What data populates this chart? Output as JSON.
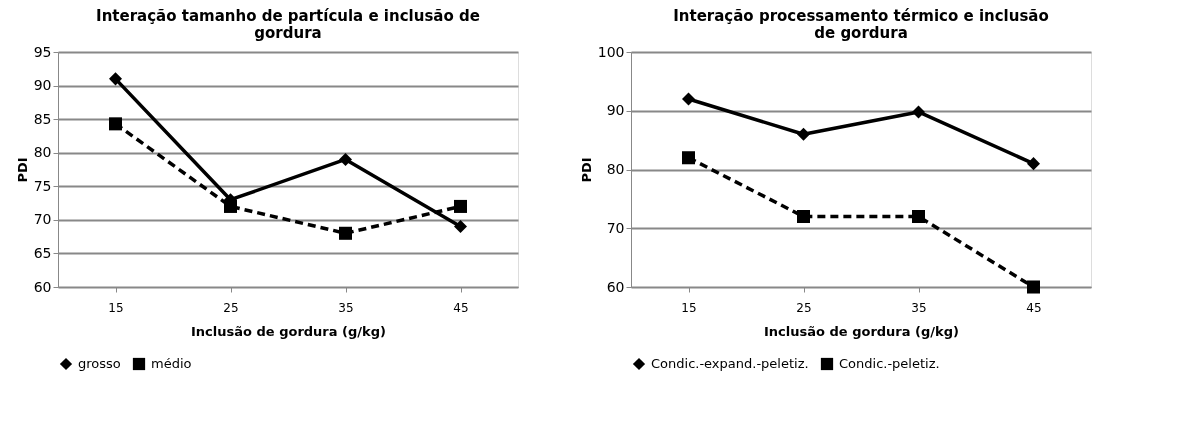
{
  "chart_data": [
    {
      "type": "line",
      "title": "Interação tamanho de partícula e inclusão de gordura",
      "xlabel": "Inclusão de gordura (g/kg)",
      "ylabel": "PDI",
      "categories": [
        "15",
        "25",
        "35",
        "45"
      ],
      "ylim": [
        60,
        95
      ],
      "yticks": [
        60,
        65,
        70,
        75,
        80,
        85,
        90,
        95
      ],
      "grid": "y",
      "legend": "bottom",
      "series": [
        {
          "name": "grosso",
          "color": "#000000",
          "values": [
            91,
            73,
            79,
            69
          ],
          "marker": "diamond",
          "line_style": "solid"
        },
        {
          "name": "médio",
          "color": "#000000",
          "values": [
            84.3,
            72,
            68,
            72
          ],
          "marker": "square",
          "line_style": "dashed"
        }
      ]
    },
    {
      "type": "line",
      "title": "Interação processamento térmico e inclusão de gordura",
      "xlabel": "Inclusão de gordura (g/kg)",
      "ylabel": "PDI",
      "categories": [
        "15",
        "25",
        "35",
        "45"
      ],
      "ylim": [
        60,
        100
      ],
      "yticks": [
        60,
        70,
        80,
        90,
        100
      ],
      "grid": "y",
      "legend": "bottom",
      "series": [
        {
          "name": "Condic.-expand.-peletiz.",
          "color": "#000000",
          "values": [
            92,
            86,
            89.8,
            81
          ],
          "marker": "diamond",
          "line_style": "solid"
        },
        {
          "name": "Condic.-peletiz.",
          "color": "#000000",
          "values": [
            82,
            72,
            72,
            60
          ],
          "marker": "square",
          "line_style": "dashed"
        }
      ]
    }
  ]
}
